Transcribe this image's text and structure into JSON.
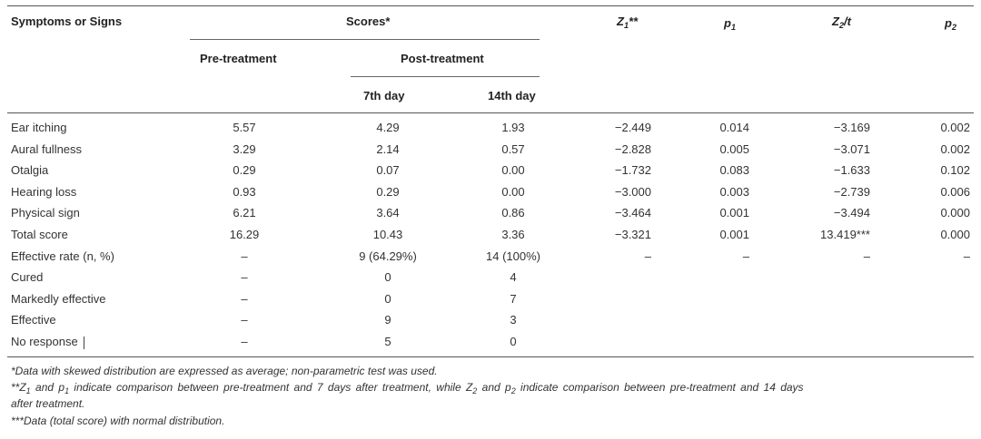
{
  "headers": {
    "col1": "Symptoms or Signs",
    "scores": "Scores*",
    "z1_main": "Z",
    "z1_sub": "1",
    "z1_tail": "**",
    "p1_main": "p",
    "p1_sub": "1",
    "z2_main": "Z",
    "z2_sub": "2",
    "z2_tail": "/t",
    "p2_main": "p",
    "p2_sub": "2",
    "pre": "Pre-treatment",
    "post": "Post-treatment",
    "day7": "7th day",
    "day14": "14th day"
  },
  "rows": [
    {
      "label": "Ear itching",
      "pre": "5.57",
      "d7": "4.29",
      "d14": "1.93",
      "z1": "−2.449",
      "p1": "0.014",
      "z2": "−3.169",
      "p2": "0.002"
    },
    {
      "label": "Aural fullness",
      "pre": "3.29",
      "d7": "2.14",
      "d14": "0.57",
      "z1": "−2.828",
      "p1": "0.005",
      "z2": "−3.071",
      "p2": "0.002"
    },
    {
      "label": "Otalgia",
      "pre": "0.29",
      "d7": "0.07",
      "d14": "0.00",
      "z1": "−1.732",
      "p1": "0.083",
      "z2": "−1.633",
      "p2": "0.102"
    },
    {
      "label": "Hearing loss",
      "pre": "0.93",
      "d7": "0.29",
      "d14": "0.00",
      "z1": "−3.000",
      "p1": "0.003",
      "z2": "−2.739",
      "p2": "0.006"
    },
    {
      "label": "Physical sign",
      "pre": "6.21",
      "d7": "3.64",
      "d14": "0.86",
      "z1": "−3.464",
      "p1": "0.001",
      "z2": "−3.494",
      "p2": "0.000"
    },
    {
      "label": "Total score",
      "pre": "16.29",
      "d7": "10.43",
      "d14": "3.36",
      "z1": "−3.321",
      "p1": "0.001",
      "z2": "13.419***",
      "p2": "0.000"
    },
    {
      "label": "Effective rate (n, %)",
      "pre": "–",
      "d7": "9 (64.29%)",
      "d14": "14 (100%)",
      "z1": "–",
      "p1": "–",
      "z2": "–",
      "p2": "–"
    },
    {
      "label": "Cured",
      "pre": "–",
      "d7": "0",
      "d14": "4",
      "z1": "",
      "p1": "",
      "z2": "",
      "p2": ""
    },
    {
      "label": "Markedly effective",
      "pre": "–",
      "d7": "0",
      "d14": "7",
      "z1": "",
      "p1": "",
      "z2": "",
      "p2": ""
    },
    {
      "label": "Effective",
      "pre": "–",
      "d7": "9",
      "d14": "3",
      "z1": "",
      "p1": "",
      "z2": "",
      "p2": ""
    },
    {
      "label": "No response",
      "pre": "–",
      "d7": "5",
      "d14": "0",
      "z1": "",
      "p1": "",
      "z2": "",
      "p2": ""
    }
  ],
  "notes": {
    "n1": "*Data with skewed distribution are expressed as average; non-parametric test was used.",
    "n2a": "**Z",
    "n2b": "1",
    "n2c": " and p",
    "n2d": "1",
    "n2e": " indicate comparison between pre-treatment and 7 days after treatment, while Z",
    "n2f": "2",
    "n2g": " and p",
    "n2h": "2",
    "n2i": " indicate comparison between pre-treatment and 14 days",
    "n2_line2": "after treatment.",
    "n3": "***Data (total score) with normal distribution."
  }
}
